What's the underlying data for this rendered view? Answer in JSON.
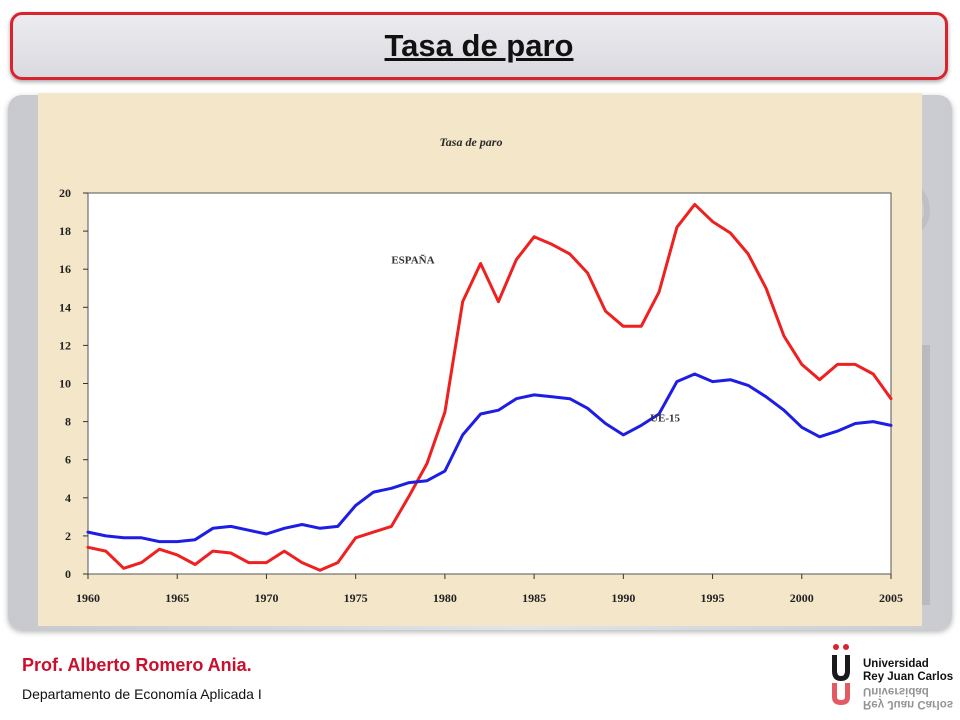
{
  "slide": {
    "title": "Tasa de paro",
    "author": "Prof. Alberto Romero Ania.",
    "department": "Departamento  de Economía Aplicada I",
    "logo_line1": "Universidad",
    "logo_line2": "Rey Juan Carlos",
    "logo_icon": "urjc-logo-icon",
    "colors": {
      "accent": "#d8242e",
      "author_text": "#c8102e"
    }
  },
  "chart_data": {
    "type": "line",
    "title": "Tasa de paro",
    "xlim": [
      1960,
      2005
    ],
    "ylim": [
      0,
      20
    ],
    "x_ticks": [
      "1960",
      "1965",
      "1970",
      "1975",
      "1980",
      "1985",
      "1990",
      "1995",
      "2000",
      "2005"
    ],
    "y_ticks": [
      "0",
      "2",
      "4",
      "6",
      "8",
      "10",
      "12",
      "14",
      "16",
      "18",
      "20"
    ],
    "grid": false,
    "x": [
      1960,
      1961,
      1962,
      1963,
      1964,
      1965,
      1966,
      1967,
      1968,
      1969,
      1970,
      1971,
      1972,
      1973,
      1974,
      1975,
      1976,
      1977,
      1978,
      1979,
      1980,
      1981,
      1982,
      1983,
      1984,
      1985,
      1986,
      1987,
      1988,
      1989,
      1990,
      1991,
      1992,
      1993,
      1994,
      1995,
      1996,
      1997,
      1998,
      1999,
      2000,
      2001,
      2002,
      2003,
      2004,
      2005
    ],
    "series": [
      {
        "name": "ESPAÑA",
        "color": "#ee2020",
        "values": [
          1.4,
          1.2,
          0.3,
          0.6,
          1.3,
          1.0,
          0.5,
          1.2,
          1.1,
          0.6,
          0.6,
          1.2,
          0.6,
          0.2,
          0.6,
          1.9,
          2.2,
          2.5,
          4.1,
          5.8,
          8.5,
          14.3,
          16.3,
          14.3,
          16.5,
          17.7,
          17.3,
          16.8,
          15.8,
          13.8,
          13.0,
          13.0,
          14.8,
          18.2,
          19.4,
          18.5,
          17.9,
          16.8,
          15.0,
          12.5,
          11.0,
          10.2,
          11.0,
          11.0,
          10.5,
          9.2
        ]
      },
      {
        "name": "UE-15",
        "color": "#1d1de6",
        "values": [
          2.2,
          2.0,
          1.9,
          1.9,
          1.7,
          1.7,
          1.8,
          2.4,
          2.5,
          2.3,
          2.1,
          2.4,
          2.6,
          2.4,
          2.5,
          3.6,
          4.3,
          4.5,
          4.8,
          4.9,
          5.4,
          7.3,
          8.4,
          8.6,
          9.2,
          9.4,
          9.3,
          9.2,
          8.7,
          7.9,
          7.3,
          7.8,
          8.4,
          10.1,
          10.5,
          10.1,
          10.2,
          9.9,
          9.3,
          8.6,
          7.7,
          7.2,
          7.5,
          7.9,
          8.0,
          7.8
        ]
      }
    ],
    "annotations": [
      {
        "text": "ESPAÑA",
        "x": 1977,
        "y": 16.3
      },
      {
        "text": "UE-15",
        "x": 1991.5,
        "y": 8.0
      }
    ]
  }
}
